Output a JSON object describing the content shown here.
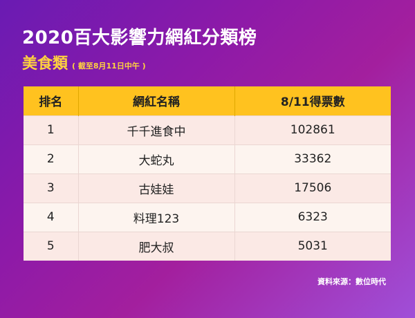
{
  "title": "2020百大影響力網紅分類榜",
  "subtitle": "美食類",
  "subnote": "( 截至8月11日中午 )",
  "table": {
    "headers": [
      "排名",
      "網紅名稱",
      "8/11得票數"
    ],
    "rows": [
      {
        "rank": "1",
        "name": "千千進食中",
        "votes": "102861"
      },
      {
        "rank": "2",
        "name": "大蛇丸",
        "votes": "33362"
      },
      {
        "rank": "3",
        "name": "古娃娃",
        "votes": "17506"
      },
      {
        "rank": "4",
        "name": "料理123",
        "votes": "6323"
      },
      {
        "rank": "5",
        "name": "肥大叔",
        "votes": "5031"
      }
    ]
  },
  "source": "資料來源：數位時代",
  "colors": {
    "header_bg": "#ffc21f",
    "title": "#ffffff",
    "subtitle": "#ffd23f",
    "row_odd": "#fbe9e5",
    "row_even": "#fdf4ef"
  }
}
